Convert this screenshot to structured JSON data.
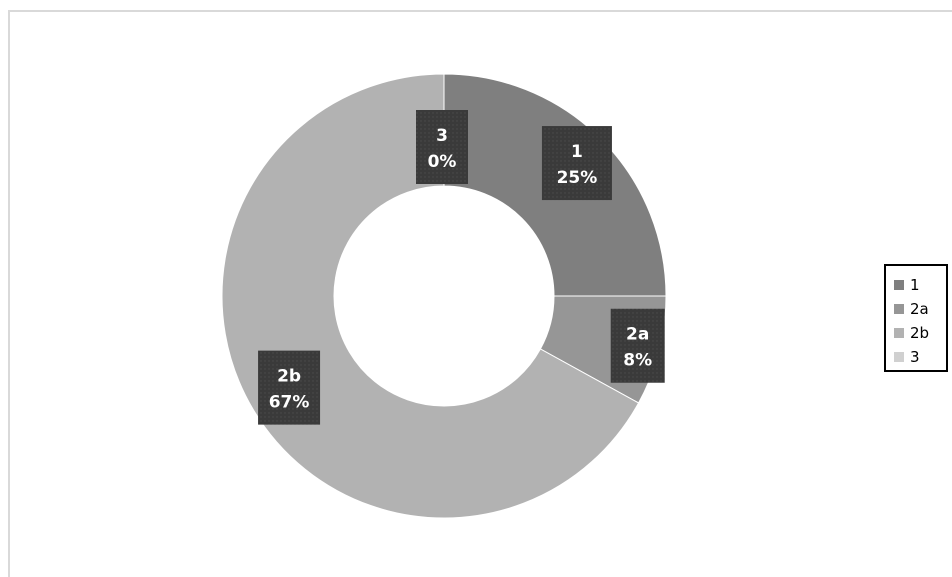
{
  "chart_data": {
    "type": "pie",
    "variant": "donut",
    "categories": [
      "1",
      "2a",
      "2b",
      "3"
    ],
    "values": [
      25,
      8,
      67,
      0
    ],
    "value_labels": [
      "25%",
      "8%",
      "67%",
      "0%"
    ],
    "colors": [
      "#7f7f7f",
      "#969696",
      "#b2b2b2",
      "#d0d0d0"
    ],
    "label_box_color": "#3a3a3a",
    "label_text_color": "#ffffff",
    "legend": {
      "placement": "right",
      "entries": [
        "1",
        "2a",
        "2b",
        "3"
      ]
    }
  }
}
